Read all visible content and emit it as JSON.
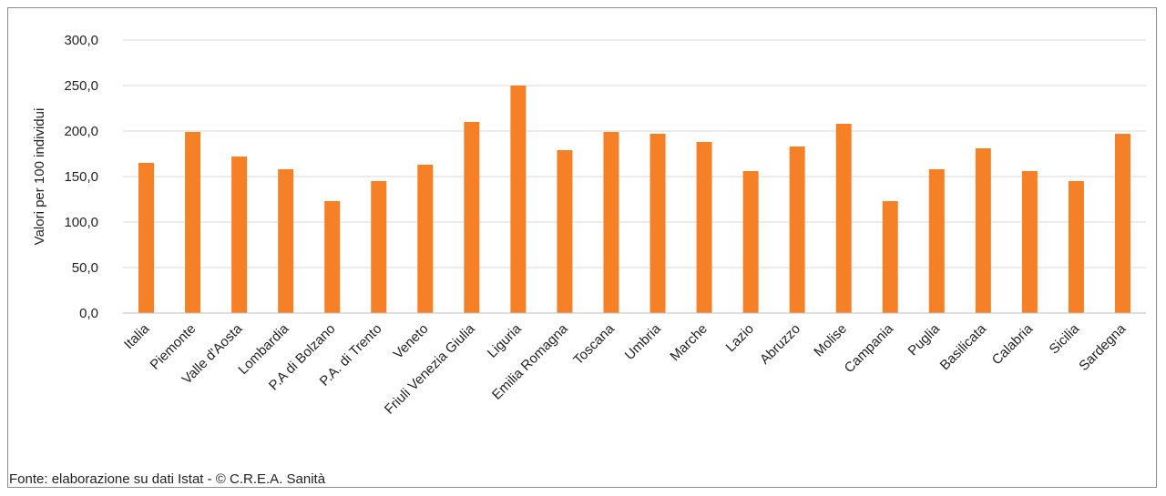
{
  "chart_data": {
    "type": "bar",
    "categories": [
      "Italia",
      "Piemonte",
      "Valle d'Aosta",
      "Lombardia",
      "P.A di Bolzano",
      "P.A. di Trento",
      "Veneto",
      "Friuli Venezia Giulia",
      "Liguria",
      "Emilia Romagna",
      "Toscana",
      "Umbria",
      "Marche",
      "Lazio",
      "Abruzzo",
      "Molise",
      "Campania",
      "Puglia",
      "Basilicata",
      "Calabria",
      "Sicilia",
      "Sardegna"
    ],
    "values": [
      165,
      199,
      172,
      158,
      123,
      145,
      163,
      210,
      250,
      179,
      199,
      197,
      188,
      156,
      183,
      208,
      123,
      158,
      181,
      156,
      145,
      197
    ],
    "ylabel": "Valori per 100 individui",
    "ylim": [
      0,
      300
    ],
    "yticks": [
      "0,0",
      "50,0",
      "100,0",
      "150,0",
      "200,0",
      "250,0",
      "300,0"
    ],
    "grid": true,
    "legend": "none",
    "bar_color": "#f58025",
    "grid_color": "#d9d9d9",
    "axis_color": "#bfbfbf"
  },
  "source_note": "Fonte: elaborazione su dati Istat - © C.R.E.A. Sanità"
}
